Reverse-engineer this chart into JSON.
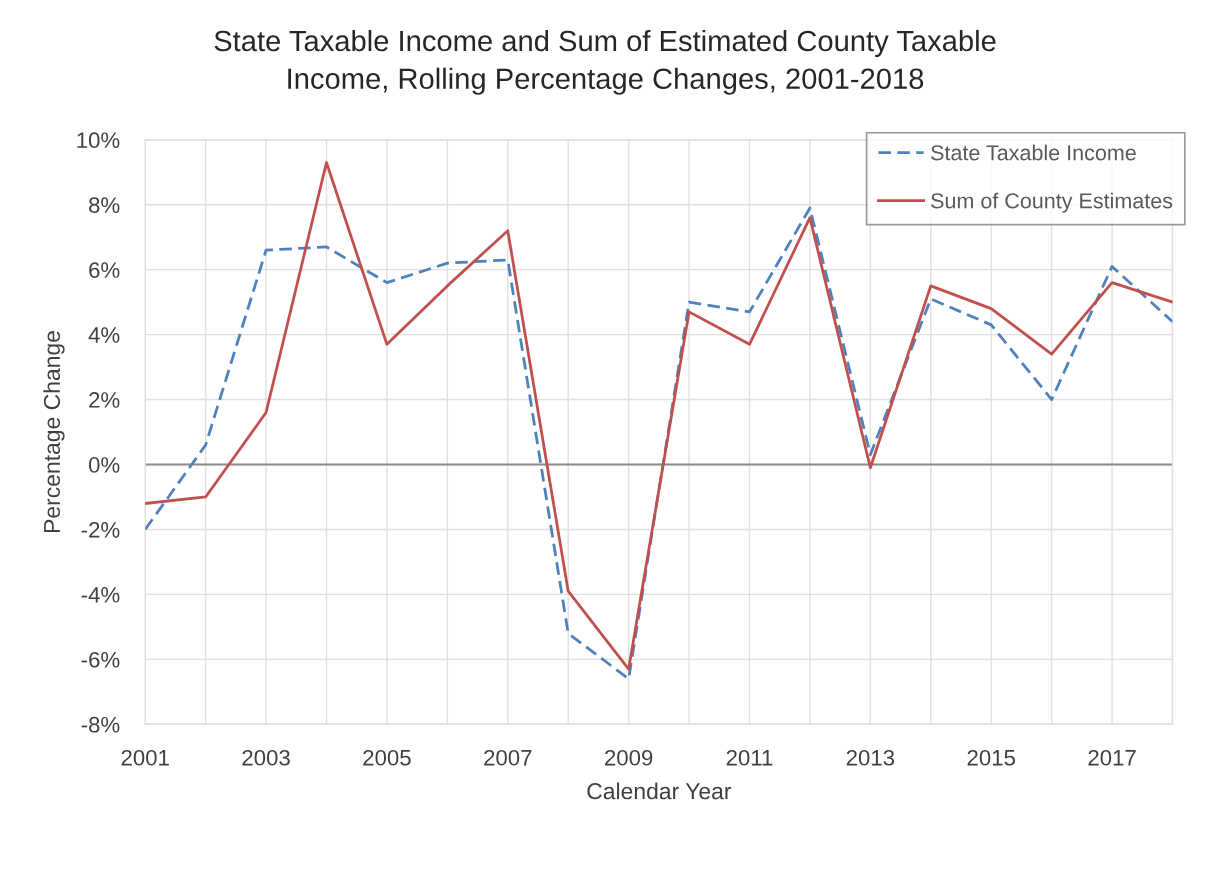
{
  "chart_data": {
    "type": "line",
    "title": "State Taxable Income and Sum of Estimated County Taxable\nIncome, Rolling Percentage Changes, 2001-2018",
    "xlabel": "Calendar Year",
    "ylabel": "Percentage Change",
    "x": [
      2001,
      2002,
      2003,
      2004,
      2005,
      2006,
      2007,
      2008,
      2009,
      2010,
      2011,
      2012,
      2013,
      2014,
      2015,
      2016,
      2017,
      2018
    ],
    "series": [
      {
        "name": "State Taxable Income",
        "color": "#4f81bd",
        "line_style": "dashed",
        "values": [
          -2.0,
          0.6,
          6.6,
          6.7,
          5.6,
          6.2,
          6.3,
          -5.2,
          -6.6,
          5.0,
          4.7,
          7.9,
          0.3,
          5.1,
          4.3,
          2.0,
          6.1,
          4.4
        ]
      },
      {
        "name": "Sum of County Estimates",
        "color": "#c0504d",
        "line_style": "solid",
        "values": [
          -1.2,
          -1.0,
          1.6,
          9.3,
          3.7,
          5.5,
          7.2,
          -3.9,
          -6.3,
          4.7,
          3.7,
          7.6,
          -0.1,
          5.5,
          4.8,
          3.4,
          5.6,
          5.0
        ]
      }
    ],
    "xlim": [
      2001,
      2018
    ],
    "xticks": [
      2001,
      {
        "value": 2002,
        "label": null
      },
      2003,
      {
        "value": 2004,
        "label": null
      },
      2005,
      {
        "value": 2006,
        "label": null
      },
      2007,
      {
        "value": 2008,
        "label": null
      },
      2009,
      {
        "value": 2010,
        "label": null
      },
      2011,
      {
        "value": 2012,
        "label": null
      },
      2013,
      {
        "value": 2014,
        "label": null
      },
      2015,
      {
        "value": 2016,
        "label": null
      },
      2017,
      {
        "value": 2018,
        "label": null
      }
    ],
    "ylim": [
      -8,
      10
    ],
    "yticks": [
      {
        "value": -8,
        "label": "-8%"
      },
      {
        "value": -6,
        "label": "-6%"
      },
      {
        "value": -4,
        "label": "-4%"
      },
      {
        "value": -2,
        "label": "-2%"
      },
      {
        "value": 0,
        "label": "0%"
      },
      {
        "value": 2,
        "label": "2%"
      },
      {
        "value": 4,
        "label": "4%"
      },
      {
        "value": 6,
        "label": "6%"
      },
      {
        "value": 8,
        "label": "8%"
      },
      {
        "value": 10,
        "label": "10%"
      }
    ],
    "ref_lines": [
      {
        "axis": "y",
        "value": 0,
        "color": "#8c8c8c"
      }
    ],
    "grid": true,
    "legend": "top right"
  }
}
